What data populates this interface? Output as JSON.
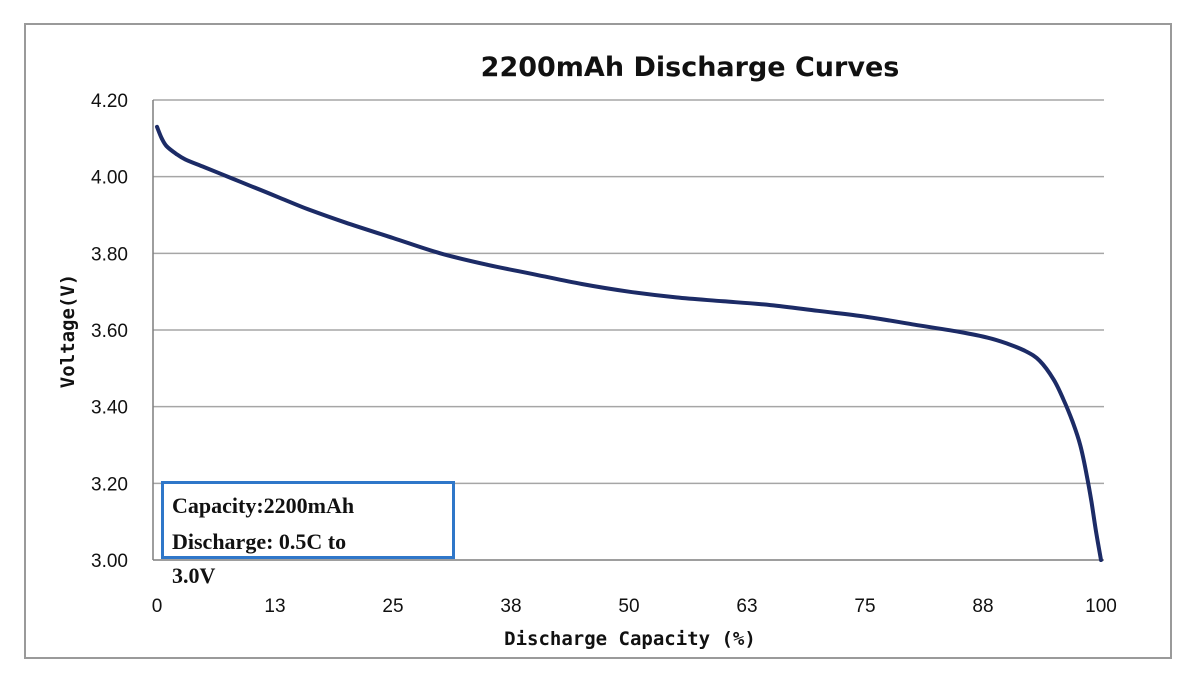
{
  "chart_data": {
    "type": "line",
    "title": "2200mAh  Discharge  Curves",
    "xlabel": "Discharge  Capacity (%)",
    "ylabel": "Voltage(V)",
    "xlim": [
      0,
      100
    ],
    "ylim": [
      3.0,
      4.2
    ],
    "x_ticks": [
      "0",
      "13",
      "25",
      "38",
      "50",
      "63",
      "75",
      "88",
      "100"
    ],
    "y_ticks": [
      "3.00",
      "3.20",
      "3.40",
      "3.60",
      "3.80",
      "4.00",
      "4.20"
    ],
    "grid": true,
    "series": [
      {
        "name": "Discharge",
        "color": "#1c2b66",
        "x": [
          0,
          0.5,
          1,
          2,
          3,
          5,
          8,
          10,
          13,
          16,
          20,
          25,
          30,
          35,
          40,
          45,
          50,
          55,
          60,
          65,
          70,
          75,
          80,
          85,
          88,
          90,
          92,
          93.5,
          95,
          96,
          97,
          97.8,
          98.5,
          99,
          99.5,
          100
        ],
        "values": [
          4.13,
          4.1,
          4.08,
          4.06,
          4.045,
          4.025,
          3.995,
          3.975,
          3.945,
          3.915,
          3.88,
          3.84,
          3.8,
          3.77,
          3.745,
          3.72,
          3.7,
          3.685,
          3.675,
          3.665,
          3.65,
          3.635,
          3.615,
          3.595,
          3.58,
          3.565,
          3.545,
          3.52,
          3.47,
          3.42,
          3.36,
          3.3,
          3.22,
          3.15,
          3.07,
          3.0
        ]
      }
    ],
    "annotation": {
      "line1": "Capacity:2200mAh",
      "line2": "Discharge: 0.5C to",
      "line3": "3.0V"
    }
  }
}
